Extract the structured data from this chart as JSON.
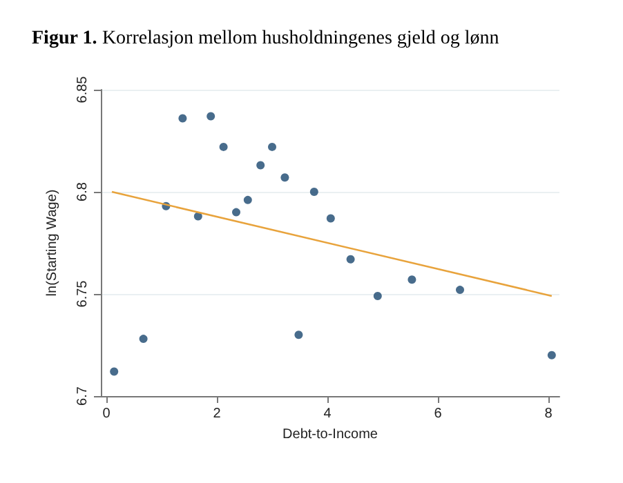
{
  "chart_data": {
    "type": "scatter",
    "title": "Figur 1. Korrelasjon mellom husholdningenes gjeld og lønn",
    "xlabel": "Debt-to-Income",
    "ylabel": "ln(Starting Wage)",
    "xlim": [
      -0.1,
      8.2
    ],
    "xticks": [
      0,
      2,
      4,
      6,
      8
    ],
    "ylim": [
      6.7,
      6.85
    ],
    "yticks": [
      6.7,
      6.75,
      6.8,
      6.85
    ],
    "grid": "y",
    "series": [
      {
        "marker": "circle",
        "color": "#1a476f",
        "x": [
          0.14,
          0.67,
          1.08,
          1.38,
          1.66,
          1.89,
          2.12,
          2.35,
          2.56,
          2.79,
          3.0,
          3.23,
          3.48,
          3.76,
          4.06,
          4.42,
          4.91,
          5.53,
          6.4,
          8.06
        ],
        "values": [
          6.712,
          6.728,
          6.793,
          6.836,
          6.788,
          6.837,
          6.822,
          6.79,
          6.796,
          6.813,
          6.822,
          6.807,
          6.73,
          6.8,
          6.787,
          6.767,
          6.749,
          6.757,
          6.752,
          6.72
        ]
      },
      {
        "type": "line",
        "color": "#e8a33c",
        "x": [
          0.1,
          8.06
        ],
        "values": [
          6.8,
          6.749
        ]
      }
    ]
  }
}
